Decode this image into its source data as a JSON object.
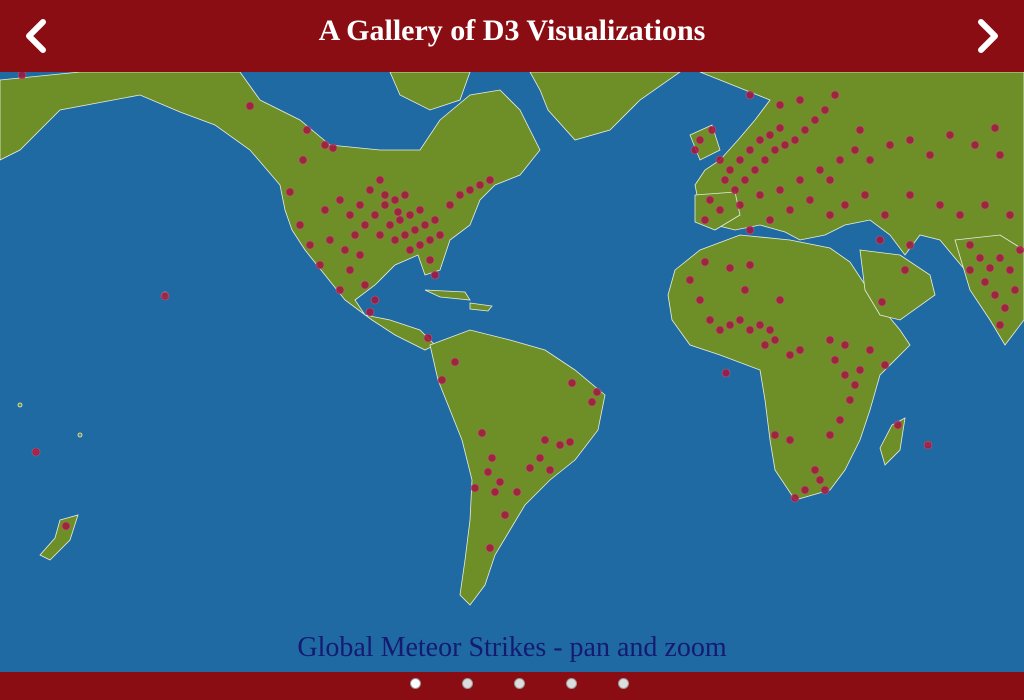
{
  "header": {
    "title": "A Gallery of D3 Visualizations"
  },
  "nav": {
    "prev_icon": "chevron-left-icon",
    "next_icon": "chevron-right-icon"
  },
  "caption": {
    "text": "Global Meteor Strikes - pan and zoom"
  },
  "pager": {
    "count": 5,
    "active_index": 0
  },
  "colors": {
    "header": "#8a0d14",
    "ocean": "#1f6aa3",
    "land": "#6e8f28",
    "marker": "#a3153f",
    "caption": "#151a72"
  }
}
